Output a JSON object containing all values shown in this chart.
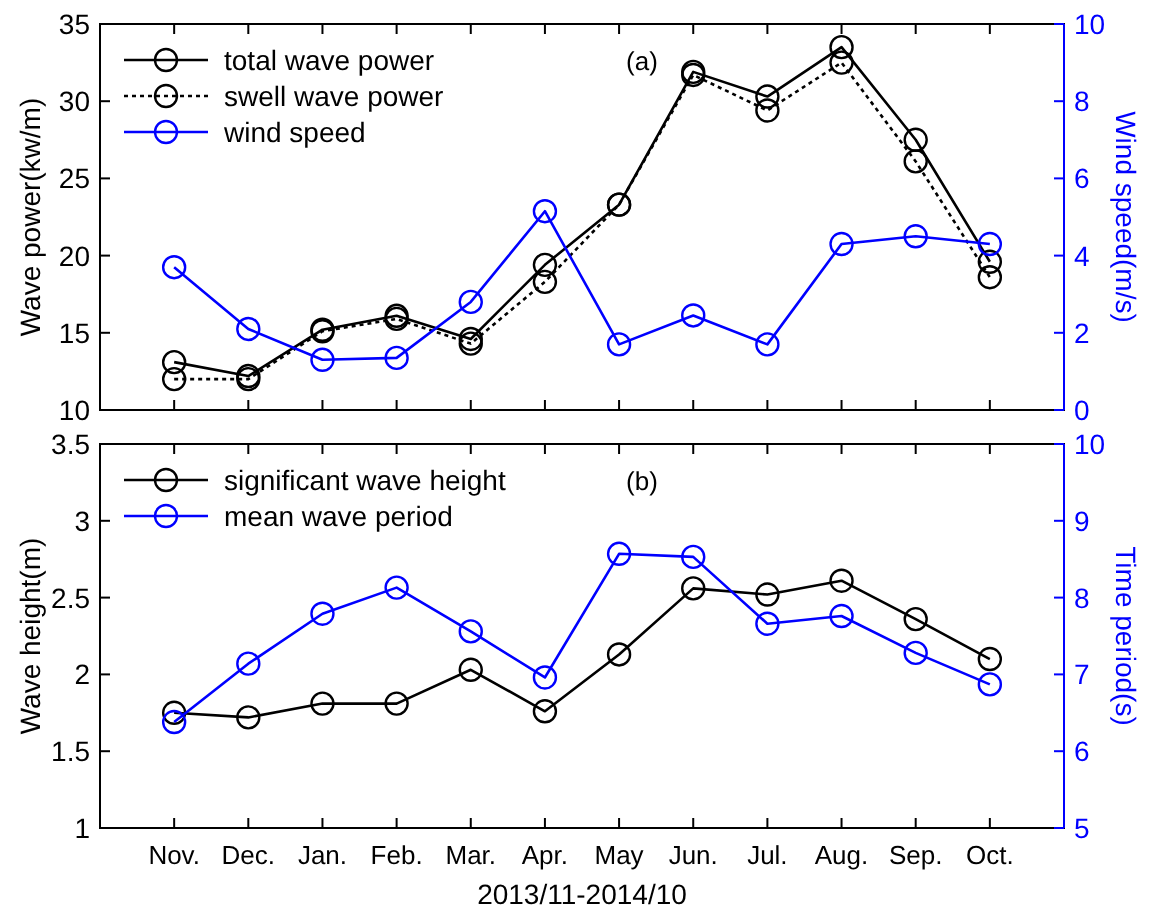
{
  "chart_data": [
    {
      "type": "line",
      "categories": [
        null,
        null,
        null,
        null,
        null,
        null,
        null,
        null,
        null,
        null,
        null,
        null
      ],
      "ylabel": "Wave power(kw/m)",
      "y2label": "Wind speed(m/s)",
      "annotations": [
        "(a)"
      ],
      "ylim": [
        10,
        35
      ],
      "yticks": [
        10,
        15,
        20,
        25,
        30,
        35
      ],
      "y2lim": [
        0,
        10
      ],
      "y2ticks": [
        0,
        2,
        4,
        6,
        8,
        10
      ],
      "legend": "top left",
      "marker": "circle",
      "grid": false,
      "series": [
        {
          "name": "total wave power",
          "color": "#000000",
          "line_style": "solid",
          "values": [
            13.1,
            12.2,
            15.2,
            16.1,
            14.6,
            19.4,
            23.3,
            31.9,
            30.3,
            33.5,
            27.5,
            19.6
          ]
        },
        {
          "name": "swell wave power",
          "color": "#000000",
          "line_style": "dotted",
          "values": [
            12.0,
            12.0,
            15.1,
            15.9,
            14.3,
            18.3,
            23.3,
            31.7,
            29.4,
            32.5,
            26.1,
            18.6
          ]
        },
        {
          "name": "wind speed",
          "color": "#0000ff",
          "line_style": "solid",
          "axis": "y2",
          "values": [
            3.7,
            2.1,
            1.3,
            1.35,
            2.8,
            5.15,
            1.7,
            2.45,
            1.7,
            4.3,
            4.5,
            4.3
          ]
        }
      ]
    },
    {
      "type": "line",
      "categories": [
        "Nov.",
        "Dec.",
        "Jan.",
        "Feb.",
        "Mar.",
        "Apr.",
        "May",
        "Jun.",
        "Jul.",
        "Aug.",
        "Sep.",
        "Oct."
      ],
      "xlabel": "2013/11-2014/10",
      "ylabel": "Wave height(m)",
      "y2label": "Time period(s)",
      "annotations": [
        "(b)"
      ],
      "ylim": [
        1,
        3.5
      ],
      "yticks": [
        1,
        1.5,
        2,
        2.5,
        3,
        3.5
      ],
      "y2lim": [
        5,
        10
      ],
      "y2ticks": [
        5,
        6,
        7,
        8,
        9,
        10
      ],
      "legend": "top left",
      "marker": "circle",
      "grid": false,
      "series": [
        {
          "name": "significant wave height",
          "color": "#000000",
          "line_style": "solid",
          "values": [
            1.75,
            1.72,
            1.81,
            1.81,
            2.03,
            1.76,
            2.13,
            2.56,
            2.52,
            2.61,
            2.36,
            2.1
          ]
        },
        {
          "name": "mean wave period",
          "color": "#0000ff",
          "line_style": "solid",
          "axis": "y2",
          "values": [
            6.38,
            7.14,
            7.79,
            8.13,
            7.56,
            6.96,
            8.57,
            8.53,
            7.66,
            7.76,
            7.28,
            6.87
          ]
        }
      ]
    }
  ]
}
